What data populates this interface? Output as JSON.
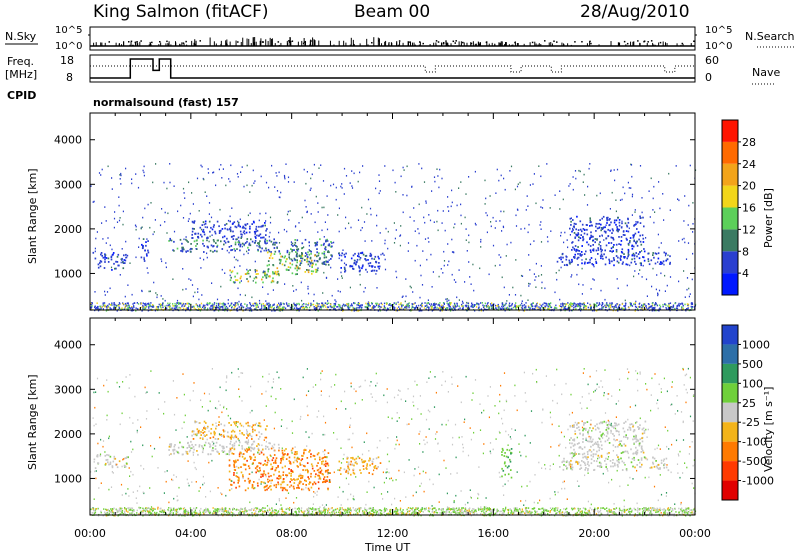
{
  "header": {
    "station": "King Salmon (fitACF)",
    "beam": "Beam 00",
    "date": "28/Aug/2010"
  },
  "strips": {
    "nsky_label": "N.Sky",
    "nsky_ticks": [
      "10^5",
      "10^0"
    ],
    "nsearch_label": "N.Search",
    "freq_label_1": "Freq.",
    "freq_label_2": "[MHz]",
    "freq_ticks": [
      "18",
      "8"
    ],
    "nave_ticks": [
      "60",
      "0"
    ],
    "nave_label": "Nave",
    "cpid_label": "CPID",
    "cpid_text": "normalsound (fast) 157"
  },
  "chart_data": [
    {
      "type": "heatmap",
      "xlabel": "Time UT",
      "ylabel": "Slant Range [km]",
      "x_ticks": [
        "00:00",
        "04:00",
        "08:00",
        "12:00",
        "16:00",
        "20:00",
        "00:00"
      ],
      "y_ticks": [
        "1000",
        "2000",
        "3000",
        "4000"
      ],
      "xlim": [
        0,
        24
      ],
      "ylim": [
        180,
        4600
      ],
      "colorbar": {
        "label": "Power [dB]",
        "ticks": [
          "4",
          "8",
          "12",
          "16",
          "20",
          "24",
          "28"
        ],
        "colors": [
          "#0018ff",
          "#2a3fcf",
          "#3a7a62",
          "#5cd05a",
          "#f2d61a",
          "#f3a41a",
          "#ff6a00",
          "#ff1500"
        ]
      },
      "regions": [
        {
          "t": [
            0.1,
            1.5
          ],
          "r": [
            1300,
            1500
          ],
          "v": 1
        },
        {
          "t": [
            0.3,
            1.4
          ],
          "r": [
            1100,
            1300
          ],
          "v": 1
        },
        {
          "t": [
            2.0,
            2.3
          ],
          "r": [
            1200,
            1800
          ],
          "v": 1
        },
        {
          "t": [
            3.1,
            7.5
          ],
          "r": [
            1500,
            1800
          ],
          "v": 2
        },
        {
          "t": [
            4.0,
            7.0
          ],
          "r": [
            1800,
            2200
          ],
          "v": 1
        },
        {
          "t": [
            5.5,
            7.5
          ],
          "r": [
            800,
            1100
          ],
          "v": 3
        },
        {
          "t": [
            7.0,
            9.0
          ],
          "r": [
            1000,
            1500
          ],
          "v": 3
        },
        {
          "t": [
            7.8,
            9.6
          ],
          "r": [
            1200,
            1800
          ],
          "v": 2
        },
        {
          "t": [
            9.8,
            11.6
          ],
          "r": [
            1050,
            1500
          ],
          "v": 1
        },
        {
          "t": [
            18.5,
            23.0
          ],
          "r": [
            1200,
            1500
          ],
          "v": 1
        },
        {
          "t": [
            19.0,
            22.0
          ],
          "r": [
            1500,
            2300
          ],
          "v": 1
        }
      ]
    },
    {
      "type": "heatmap",
      "xlabel": "Time UT",
      "ylabel": "Slant Range [km]",
      "x_ticks": [
        "00:00",
        "04:00",
        "08:00",
        "12:00",
        "16:00",
        "20:00",
        "00:00"
      ],
      "y_ticks": [
        "1000",
        "2000",
        "3000",
        "4000"
      ],
      "xlim": [
        0,
        24
      ],
      "ylim": [
        180,
        4600
      ],
      "colorbar": {
        "label": "Velocity [m s⁻¹]",
        "ticks": [
          "1000",
          "500",
          "100",
          "25",
          "-25",
          "-100",
          "-500",
          "-1000"
        ],
        "colors": [
          "#2244cc",
          "#2d6fa8",
          "#2f9a5e",
          "#6fcf3a",
          "#c8c8c8",
          "#f3b41a",
          "#ff7a00",
          "#ff3a00",
          "#e00000"
        ]
      },
      "regions": [
        {
          "t": [
            0.1,
            1.5
          ],
          "r": [
            1250,
            1550
          ],
          "v": "gray"
        },
        {
          "t": [
            3.1,
            7.5
          ],
          "r": [
            1550,
            1850
          ],
          "v": "gray"
        },
        {
          "t": [
            4.0,
            7.0
          ],
          "r": [
            1900,
            2300
          ],
          "v": "orange-light"
        },
        {
          "t": [
            5.5,
            9.5
          ],
          "r": [
            750,
            1700
          ],
          "v": "orange"
        },
        {
          "t": [
            9.8,
            11.6
          ],
          "r": [
            1100,
            1500
          ],
          "v": "orange-light"
        },
        {
          "t": [
            16.3,
            16.7
          ],
          "r": [
            1000,
            1700
          ],
          "v": "green"
        },
        {
          "t": [
            18.5,
            23.0
          ],
          "r": [
            1200,
            1500
          ],
          "v": "gray"
        },
        {
          "t": [
            19.0,
            22.0
          ],
          "r": [
            1500,
            2300
          ],
          "v": "gray"
        }
      ]
    }
  ]
}
